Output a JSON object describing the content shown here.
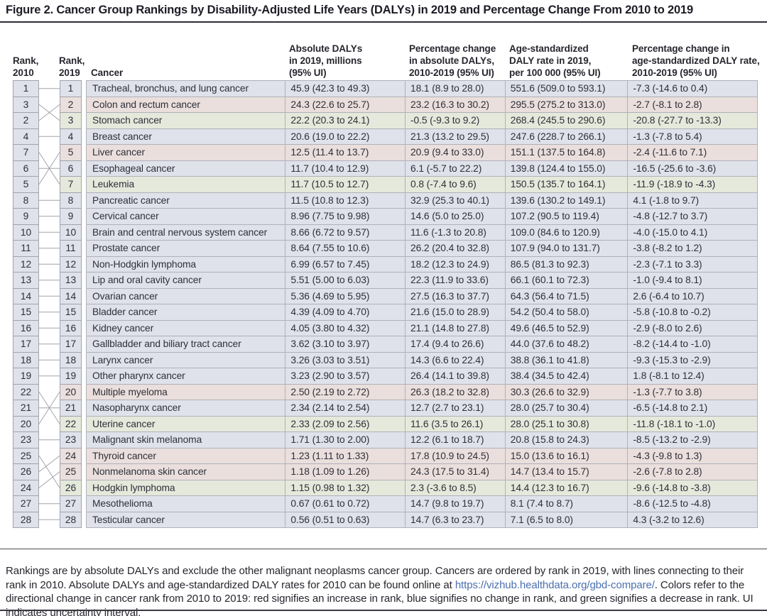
{
  "title": "Figure 2. Cancer Group Rankings by Disability-Adjusted Life Years (DALYs) in 2019 and Percentage Change From 2010 to 2019",
  "table": {
    "headers": {
      "rank2010": "Rank,\n2010",
      "rank2019": "Rank,\n2019",
      "cancer": "Cancer",
      "abs_dalys": "Absolute DALYs\nin 2019, millions\n(95% UI)",
      "pct_change_dalys": "Percentage change\nin absolute DALYs,\n2010-2019 (95% UI)",
      "age_std_rate": "Age-standardized\nDALY rate in 2019,\nper 100 000 (95% UI)",
      "pct_change_rate": "Percentage change in\nage-standardized DALY rate,\n2010-2019 (95% UI)"
    },
    "rows": [
      {
        "rank2010": 1,
        "rank2019": 1,
        "cancer": "Tracheal, bronchus, and lung cancer",
        "abs_dalys": "45.9 (42.3 to 49.3)",
        "pct_change_dalys": "18.1 (8.9 to 28.0)",
        "age_std_rate": "551.6 (509.0 to 593.1)",
        "pct_change_rate": "-7.3 (-14.6 to 0.4)",
        "change": "no_change"
      },
      {
        "rank2010": 3,
        "rank2019": 2,
        "cancer": "Colon and rectum cancer",
        "abs_dalys": "24.3 (22.6 to 25.7)",
        "pct_change_dalys": "23.2 (16.3 to 30.2)",
        "age_std_rate": "295.5 (275.2 to 313.0)",
        "pct_change_rate": "-2.7 (-8.1 to 2.8)",
        "change": "increase"
      },
      {
        "rank2010": 2,
        "rank2019": 3,
        "cancer": "Stomach cancer",
        "abs_dalys": "22.2 (20.3 to 24.1)",
        "pct_change_dalys": "-0.5 (-9.3 to 9.2)",
        "age_std_rate": "268.4 (245.5 to 290.6)",
        "pct_change_rate": "-20.8 (-27.7 to -13.3)",
        "change": "decrease"
      },
      {
        "rank2010": 4,
        "rank2019": 4,
        "cancer": "Breast cancer",
        "abs_dalys": "20.6 (19.0 to 22.2)",
        "pct_change_dalys": "21.3 (13.2 to 29.5)",
        "age_std_rate": "247.6 (228.7 to 266.1)",
        "pct_change_rate": "-1.3 (-7.8 to 5.4)",
        "change": "no_change"
      },
      {
        "rank2010": 7,
        "rank2019": 5,
        "cancer": "Liver cancer",
        "abs_dalys": "12.5 (11.4 to 13.7)",
        "pct_change_dalys": "20.9 (9.4 to 33.0)",
        "age_std_rate": "151.1 (137.5 to 164.8)",
        "pct_change_rate": "-2.4 (-11.6 to 7.1)",
        "change": "increase"
      },
      {
        "rank2010": 6,
        "rank2019": 6,
        "cancer": "Esophageal cancer",
        "abs_dalys": "11.7 (10.4 to 12.9)",
        "pct_change_dalys": "6.1 (-5.7 to 22.2)",
        "age_std_rate": "139.8 (124.4 to 155.0)",
        "pct_change_rate": "-16.5 (-25.6 to -3.6)",
        "change": "no_change"
      },
      {
        "rank2010": 5,
        "rank2019": 7,
        "cancer": "Leukemia",
        "abs_dalys": "11.7 (10.5 to 12.7)",
        "pct_change_dalys": "0.8 (-7.4 to 9.6)",
        "age_std_rate": "150.5 (135.7 to 164.1)",
        "pct_change_rate": "-11.9 (-18.9 to -4.3)",
        "change": "decrease"
      },
      {
        "rank2010": 8,
        "rank2019": 8,
        "cancer": "Pancreatic cancer",
        "abs_dalys": "11.5 (10.8 to 12.3)",
        "pct_change_dalys": "32.9 (25.3 to 40.1)",
        "age_std_rate": "139.6 (130.2 to 149.1)",
        "pct_change_rate": "4.1 (-1.8 to 9.7)",
        "change": "no_change"
      },
      {
        "rank2010": 9,
        "rank2019": 9,
        "cancer": "Cervical cancer",
        "abs_dalys": "8.96 (7.75 to 9.98)",
        "pct_change_dalys": "14.6 (5.0 to 25.0)",
        "age_std_rate": "107.2 (90.5 to 119.4)",
        "pct_change_rate": "-4.8 (-12.7 to 3.7)",
        "change": "no_change"
      },
      {
        "rank2010": 10,
        "rank2019": 10,
        "cancer": "Brain and central nervous system cancer",
        "abs_dalys": "8.66 (6.72 to 9.57)",
        "pct_change_dalys": "11.6 (-1.3 to 20.8)",
        "age_std_rate": "109.0 (84.6 to 120.9)",
        "pct_change_rate": "-4.0 (-15.0 to 4.1)",
        "change": "no_change"
      },
      {
        "rank2010": 11,
        "rank2019": 11,
        "cancer": "Prostate cancer",
        "abs_dalys": "8.64 (7.55 to 10.6)",
        "pct_change_dalys": "26.2 (20.4 to 32.8)",
        "age_std_rate": "107.9 (94.0 to 131.7)",
        "pct_change_rate": "-3.8 (-8.2 to 1.2)",
        "change": "no_change"
      },
      {
        "rank2010": 12,
        "rank2019": 12,
        "cancer": "Non-Hodgkin lymphoma",
        "abs_dalys": "6.99 (6.57 to 7.45)",
        "pct_change_dalys": "18.2 (12.3 to 24.9)",
        "age_std_rate": "86.5 (81.3 to 92.3)",
        "pct_change_rate": "-2.3 (-7.1 to 3.3)",
        "change": "no_change"
      },
      {
        "rank2010": 13,
        "rank2019": 13,
        "cancer": "Lip and oral cavity cancer",
        "abs_dalys": "5.51 (5.00 to 6.03)",
        "pct_change_dalys": "22.3 (11.9 to 33.6)",
        "age_std_rate": "66.1 (60.1 to 72.3)",
        "pct_change_rate": "-1.0 (-9.4 to 8.1)",
        "change": "no_change"
      },
      {
        "rank2010": 14,
        "rank2019": 14,
        "cancer": "Ovarian cancer",
        "abs_dalys": "5.36 (4.69 to 5.95)",
        "pct_change_dalys": "27.5 (16.3 to 37.7)",
        "age_std_rate": "64.3 (56.4 to 71.5)",
        "pct_change_rate": "2.6 (-6.4 to 10.7)",
        "change": "no_change"
      },
      {
        "rank2010": 15,
        "rank2019": 15,
        "cancer": "Bladder cancer",
        "abs_dalys": "4.39 (4.09 to 4.70)",
        "pct_change_dalys": "21.6 (15.0 to 28.9)",
        "age_std_rate": "54.2 (50.4 to 58.0)",
        "pct_change_rate": "-5.8 (-10.8 to -0.2)",
        "change": "no_change"
      },
      {
        "rank2010": 16,
        "rank2019": 16,
        "cancer": "Kidney cancer",
        "abs_dalys": "4.05 (3.80 to 4.32)",
        "pct_change_dalys": "21.1 (14.8 to 27.8)",
        "age_std_rate": "49.6 (46.5 to 52.9)",
        "pct_change_rate": "-2.9 (-8.0 to 2.6)",
        "change": "no_change"
      },
      {
        "rank2010": 17,
        "rank2019": 17,
        "cancer": "Gallbladder and biliary tract cancer",
        "abs_dalys": "3.62 (3.10 to 3.97)",
        "pct_change_dalys": "17.4 (9.4 to 26.6)",
        "age_std_rate": "44.0 (37.6 to 48.2)",
        "pct_change_rate": "-8.2 (-14.4 to -1.0)",
        "change": "no_change"
      },
      {
        "rank2010": 18,
        "rank2019": 18,
        "cancer": "Larynx cancer",
        "abs_dalys": "3.26 (3.03 to 3.51)",
        "pct_change_dalys": "14.3 (6.6 to 22.4)",
        "age_std_rate": "38.8 (36.1 to 41.8)",
        "pct_change_rate": "-9.3 (-15.3 to -2.9)",
        "change": "no_change"
      },
      {
        "rank2010": 19,
        "rank2019": 19,
        "cancer": "Other pharynx cancer",
        "abs_dalys": "3.23 (2.90 to 3.57)",
        "pct_change_dalys": "26.4 (14.1 to 39.8)",
        "age_std_rate": "38.4 (34.5 to 42.4)",
        "pct_change_rate": "1.8 (-8.1 to 12.4)",
        "change": "no_change"
      },
      {
        "rank2010": 22,
        "rank2019": 20,
        "cancer": "Multiple myeloma",
        "abs_dalys": "2.50 (2.19 to 2.72)",
        "pct_change_dalys": "26.3 (18.2 to 32.8)",
        "age_std_rate": "30.3 (26.6 to 32.9)",
        "pct_change_rate": "-1.3 (-7.7 to 3.8)",
        "change": "increase"
      },
      {
        "rank2010": 21,
        "rank2019": 21,
        "cancer": "Nasopharynx cancer",
        "abs_dalys": "2.34 (2.14 to 2.54)",
        "pct_change_dalys": "12.7 (2.7 to 23.1)",
        "age_std_rate": "28.0 (25.7 to 30.4)",
        "pct_change_rate": "-6.5 (-14.8 to 2.1)",
        "change": "no_change"
      },
      {
        "rank2010": 20,
        "rank2019": 22,
        "cancer": "Uterine cancer",
        "abs_dalys": "2.33 (2.09 to 2.56)",
        "pct_change_dalys": "11.6 (3.5 to 26.1)",
        "age_std_rate": "28.0 (25.1 to 30.8)",
        "pct_change_rate": "-11.8 (-18.1 to -1.0)",
        "change": "decrease"
      },
      {
        "rank2010": 23,
        "rank2019": 23,
        "cancer": "Malignant skin melanoma",
        "abs_dalys": "1.71 (1.30 to 2.00)",
        "pct_change_dalys": "12.2 (6.1 to 18.7)",
        "age_std_rate": "20.8 (15.8 to 24.3)",
        "pct_change_rate": "-8.5 (-13.2 to -2.9)",
        "change": "no_change"
      },
      {
        "rank2010": 25,
        "rank2019": 24,
        "cancer": "Thyroid cancer",
        "abs_dalys": "1.23 (1.11 to 1.33)",
        "pct_change_dalys": "17.8 (10.9 to 24.5)",
        "age_std_rate": "15.0 (13.6 to 16.1)",
        "pct_change_rate": "-4.3 (-9.8 to 1.3)",
        "change": "increase"
      },
      {
        "rank2010": 26,
        "rank2019": 25,
        "cancer": "Nonmelanoma skin cancer",
        "abs_dalys": "1.18 (1.09 to 1.26)",
        "pct_change_dalys": "24.3 (17.5 to 31.4)",
        "age_std_rate": "14.7 (13.4 to 15.7)",
        "pct_change_rate": "-2.6 (-7.8 to 2.8)",
        "change": "increase"
      },
      {
        "rank2010": 24,
        "rank2019": 26,
        "cancer": "Hodgkin lymphoma",
        "abs_dalys": "1.15 (0.98 to 1.32)",
        "pct_change_dalys": "2.3 (-3.6 to 8.5)",
        "age_std_rate": "14.4 (12.3 to 16.7)",
        "pct_change_rate": "-9.6 (-14.8 to -3.8)",
        "change": "decrease"
      },
      {
        "rank2010": 27,
        "rank2019": 27,
        "cancer": "Mesothelioma",
        "abs_dalys": "0.67 (0.61 to 0.72)",
        "pct_change_dalys": "14.7 (9.8 to 19.7)",
        "age_std_rate": "8.1 (7.4 to 8.7)",
        "pct_change_rate": "-8.6 (-12.5 to -4.8)",
        "change": "no_change"
      },
      {
        "rank2010": 28,
        "rank2019": 28,
        "cancer": "Testicular cancer",
        "abs_dalys": "0.56 (0.51 to 0.63)",
        "pct_change_dalys": "14.7 (6.3 to 23.7)",
        "age_std_rate": "7.1 (6.5 to 8.0)",
        "pct_change_rate": "4.3 (-3.2 to 12.6)",
        "change": "no_change"
      }
    ]
  },
  "colors": {
    "increase": "#eadfdc",
    "no_change": "#dfe1eb",
    "decrease": "#e4e9db",
    "rank2010_box": "#dfe1eb",
    "connector_line": "#a2a3ab"
  },
  "footnote": {
    "text_before_link": "Rankings are by absolute DALYs and exclude the other malignant neoplasms cancer group. Cancers are ordered by rank in 2019, with lines connecting to their rank in 2010. Absolute DALYs and age-standardized DALY rates for 2010 can be found online at ",
    "link": "https://vizhub.healthdata.org/gbd-compare/",
    "text_after_link": ". Colors refer to the directional change in cancer rank from 2010 to 2019: red signifies an increase in rank, blue signifies no change in rank, and green signifies a decrease in rank. UI indicates uncertainty interval."
  }
}
